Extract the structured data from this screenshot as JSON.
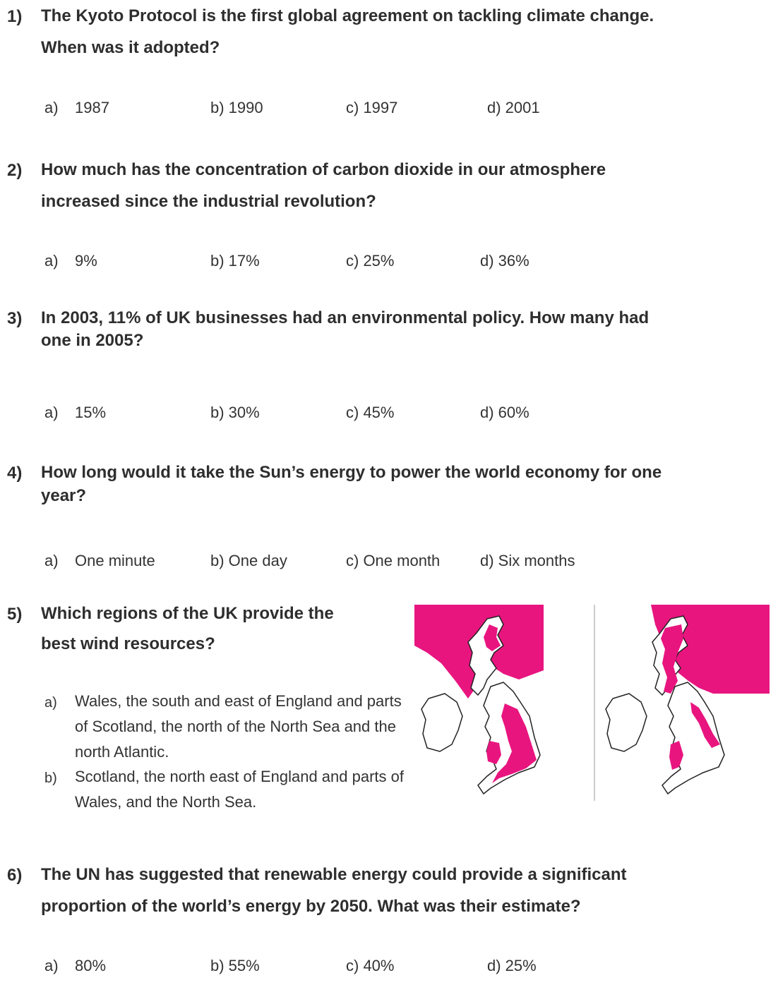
{
  "questions": [
    {
      "number": "1)",
      "text": "The Kyoto Protocol is the first global agreement on tackling climate change. When was it adopted?",
      "line1": "The Kyoto Protocol is the first global agreement on tackling climate change.",
      "line2": "When was it adopted?",
      "options": [
        "a)",
        "1987",
        "b) 1990",
        "c) 1997",
        "d) 2001"
      ]
    },
    {
      "number": "2)",
      "line1": "How much has the concentration of carbon dioxide in our atmosphere",
      "line2": "increased since the industrial revolution?",
      "options": [
        "a)",
        "9%",
        "b) 17%",
        "c) 25%",
        "d) 36%"
      ]
    },
    {
      "number": "3)",
      "line1": "In 2003, 11% of UK businesses had an environmental policy. How many had",
      "line2": "one in 2005?",
      "options": [
        "a)",
        "15%",
        "b) 30%",
        "c) 45%",
        "d) 60%"
      ]
    },
    {
      "number": "4)",
      "line1": "How long would it take the Sun’s energy to power the world economy for one",
      "line2": "year?",
      "options": [
        "a)",
        "One minute",
        "b) One day",
        "c) One month",
        "d) Six months"
      ]
    },
    {
      "number": "5)",
      "line1": "Which regions of the UK provide the",
      "line2": "best wind resources?",
      "long_options": [
        {
          "letter": "a)",
          "text": "Wales, the south and east of England and parts of Scotland, the north of the North Sea and the north Atlantic."
        },
        {
          "letter": "b)",
          "text": "Scotland, the north east of England and parts of Wales, and the North Sea."
        }
      ]
    },
    {
      "number": "6)",
      "line1": "The UN has suggested that renewable energy could provide a significant",
      "line2": "proportion of the world’s energy by 2050. What was their estimate?",
      "options": [
        "a)",
        "80%",
        "b) 55%",
        "c) 40%",
        "d) 25%"
      ]
    }
  ],
  "colors": {
    "highlight": "#e8157f",
    "text": "#2e2e2e"
  },
  "maps": [
    "uk-map-option-a",
    "uk-map-option-b"
  ]
}
